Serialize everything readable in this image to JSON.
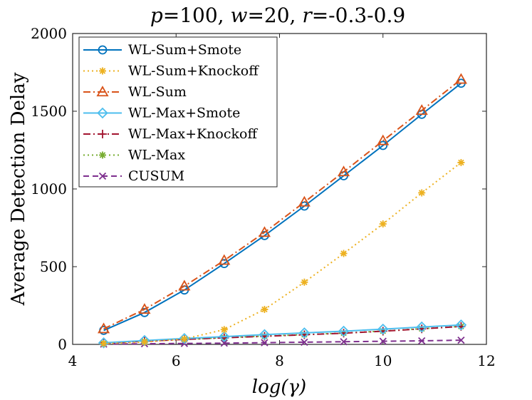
{
  "chart_data": {
    "type": "line",
    "title": {
      "p": "p",
      "p_val": "=100, ",
      "w": "w",
      "w_val": "=20, ",
      "r": "r",
      "r_val": "=-0.3-0.9"
    },
    "xlabel": "log(γ)",
    "ylabel": "Average Detection Delay",
    "xlim": [
      4,
      12
    ],
    "ylim": [
      0,
      2000
    ],
    "xticks": [
      4,
      6,
      8,
      10,
      12
    ],
    "yticks": [
      0,
      500,
      1000,
      1500,
      2000
    ],
    "x": [
      4.6,
      5.39,
      6.16,
      6.93,
      7.71,
      8.48,
      9.24,
      10.0,
      10.75,
      11.51
    ],
    "legend_position": "top-left",
    "series": [
      {
        "name": "WL-Sum+Smote",
        "color": "#0072BD",
        "dash": "",
        "marker": "circle",
        "values": [
          90,
          205,
          350,
          520,
          700,
          890,
          1085,
          1280,
          1480,
          1680
        ]
      },
      {
        "name": "WL-Sum+Knockoff",
        "color": "#EDB120",
        "dash": "2,4",
        "marker": "asterisk",
        "values": [
          5,
          15,
          35,
          95,
          225,
          400,
          585,
          775,
          975,
          1170
        ]
      },
      {
        "name": "WL-Sum",
        "color": "#D95319",
        "dash": "10,4,2,4",
        "marker": "triangle",
        "values": [
          100,
          225,
          375,
          540,
          720,
          915,
          1110,
          1310,
          1505,
          1705
        ]
      },
      {
        "name": "WL-Max+Smote",
        "color": "#4DBEEE",
        "dash": "",
        "marker": "diamond",
        "values": [
          10,
          25,
          38,
          50,
          63,
          74,
          85,
          98,
          112,
          125
        ]
      },
      {
        "name": "WL-Max+Knockoff",
        "color": "#A2142F",
        "dash": "10,4,2,4",
        "marker": "plus",
        "values": [
          8,
          20,
          32,
          42,
          52,
          62,
          72,
          85,
          100,
          115
        ]
      },
      {
        "name": "WL-Max",
        "color": "#77AC30",
        "dash": "2,4",
        "marker": "asterisk",
        "values": [
          8,
          20,
          32,
          43,
          53,
          63,
          73,
          86,
          101,
          116
        ]
      },
      {
        "name": "CUSUM",
        "color": "#7E2F8E",
        "dash": "8,5",
        "marker": "x",
        "values": [
          2,
          4,
          6,
          8,
          11,
          14,
          17,
          20,
          23,
          27
        ]
      }
    ]
  }
}
